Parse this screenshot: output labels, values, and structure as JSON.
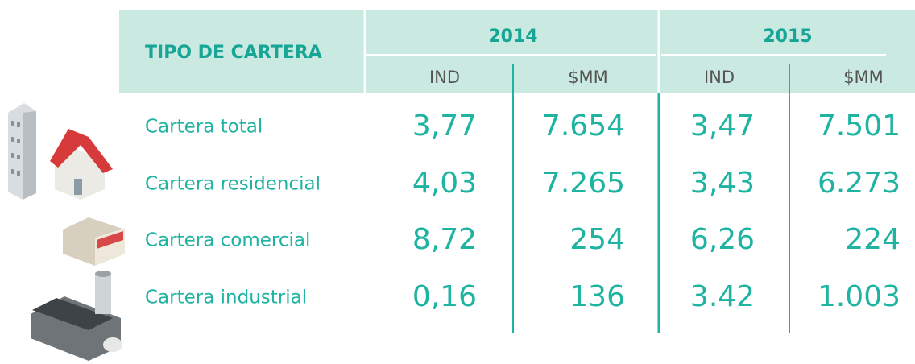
{
  "header": {
    "title": "TIPO DE CARTERA",
    "years": [
      {
        "year": "2014",
        "columns": [
          "IND",
          "$MM"
        ]
      },
      {
        "year": "2015",
        "columns": [
          "IND",
          "$MM"
        ]
      }
    ]
  },
  "table": {
    "rows": [
      {
        "label": "Cartera total",
        "values": [
          "3,77",
          "7.654",
          "3,47",
          "7.501"
        ]
      },
      {
        "label": "Cartera residencial",
        "values": [
          "4,03",
          "7.265",
          "3,43",
          "6.273"
        ]
      },
      {
        "label": "Cartera comercial",
        "values": [
          "8,72",
          "254",
          "6,26",
          "224"
        ]
      },
      {
        "label": "Cartera industrial",
        "values": [
          "0,16",
          "136",
          "3.42",
          "1.003"
        ]
      }
    ]
  }
}
